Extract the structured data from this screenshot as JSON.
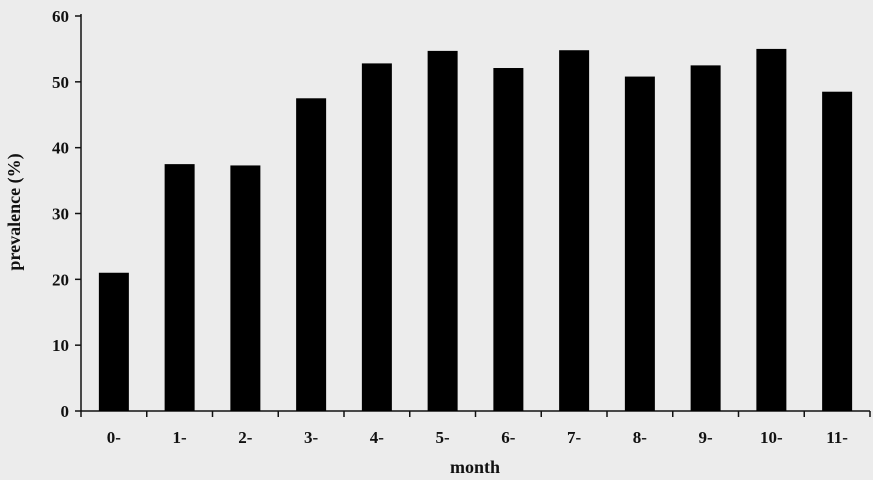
{
  "chart_data": {
    "type": "bar",
    "title": "",
    "xlabel": "month",
    "ylabel": "prevalence (%)",
    "categories": [
      "0-",
      "1-",
      "2-",
      "3-",
      "4-",
      "5-",
      "6-",
      "7-",
      "8-",
      "9-",
      "10-",
      "11-"
    ],
    "values": [
      21,
      37.5,
      37.3,
      47.5,
      52.8,
      54.7,
      52.1,
      54.8,
      50.8,
      52.5,
      55,
      48.5
    ],
    "ylim": [
      0,
      60
    ],
    "yticks": [
      0,
      10,
      20,
      30,
      40,
      50,
      60
    ],
    "grid": false,
    "bar_color": "#000000",
    "background": "#ececec"
  }
}
